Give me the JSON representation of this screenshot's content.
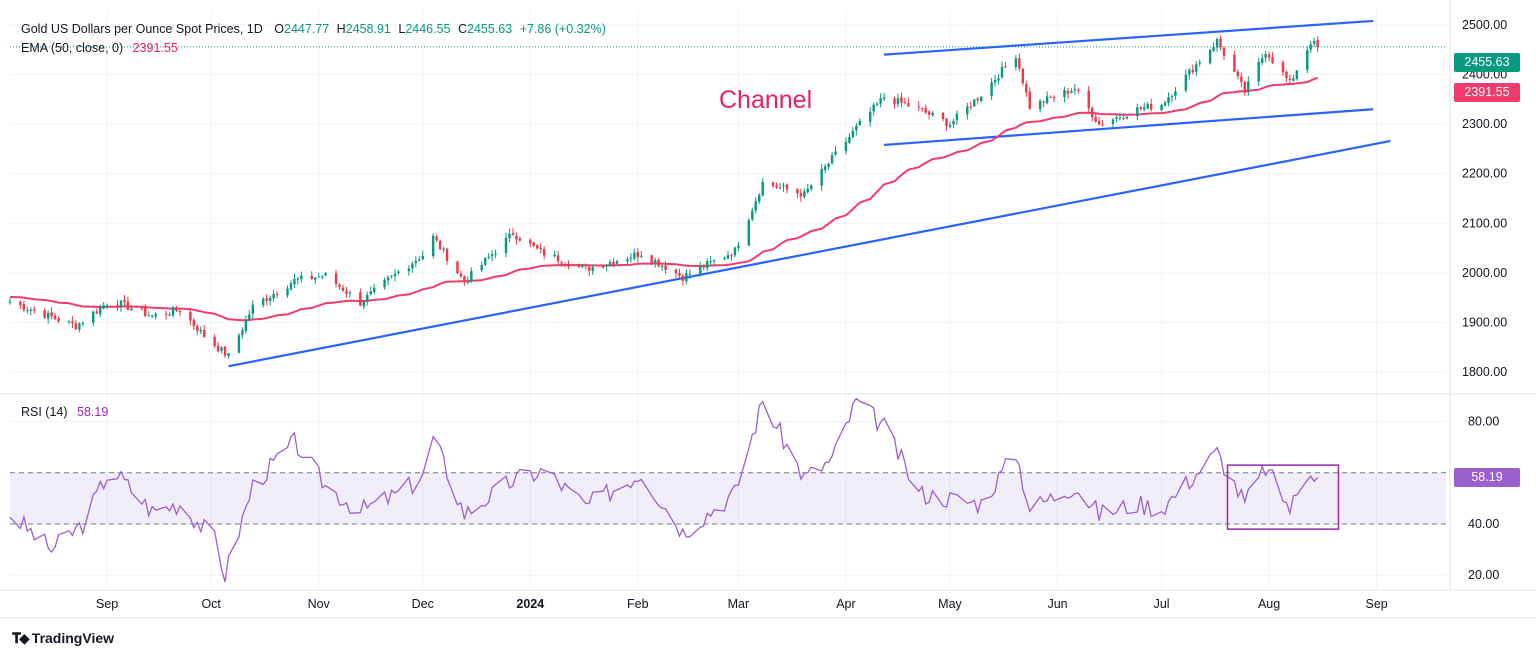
{
  "header": {
    "symbol_line": "Gold US Dollars per Ounce Spot Prices, 1D",
    "o_label": "O",
    "o_value": "2447.77",
    "h_label": "H",
    "h_value": "2458.91",
    "l_label": "L",
    "l_value": "2446.55",
    "c_label": "C",
    "c_value": "2455.63",
    "change": "+7.86 (+0.32%)",
    "ema_label": "EMA (50, close, 0)",
    "ema_value": "2391.55",
    "rsi_label": "RSI (14)",
    "rsi_value": "58.19"
  },
  "annotation": "Channel",
  "badges": {
    "price": "2455.63",
    "ema": "2391.55",
    "rsi": "58.19"
  },
  "brand": "TradingView",
  "colors": {
    "up": "#089981",
    "down": "#f23645",
    "ema": "#f23b6d",
    "rsi": "#9c5fcc",
    "trendline": "#2962ff",
    "box": "#9c27b0"
  },
  "chart_data": [
    {
      "type": "candlestick",
      "title": "Gold US Dollars per Ounce Spot Prices, 1D",
      "y_axis_ticks": [
        "2500.00",
        "2400.00",
        "2300.00",
        "2200.00",
        "2100.00",
        "2000.00",
        "1900.00",
        "1800.00"
      ],
      "ylim": [
        1760,
        2530
      ],
      "x_axis_ticks": [
        "Sep",
        "Oct",
        "Nov",
        "Dec",
        "2024",
        "Feb",
        "Mar",
        "Apr",
        "May",
        "Jun",
        "Jul",
        "Aug",
        "Sep"
      ],
      "x_tick_dates": [
        "2023-09-01",
        "2023-10-01",
        "2023-11-01",
        "2023-12-01",
        "2024-01-01",
        "2024-02-01",
        "2024-03-01",
        "2024-04-01",
        "2024-05-01",
        "2024-06-01",
        "2024-07-01",
        "2024-08-01",
        "2024-09-01"
      ],
      "xlim": [
        "2023-08-04",
        "2024-09-21"
      ],
      "close_anchor_dates": [
        "2023-08-04",
        "2023-08-23",
        "2023-09-02",
        "2023-09-14",
        "2023-09-22",
        "2023-09-30",
        "2023-10-06",
        "2023-10-13",
        "2023-10-25",
        "2023-11-03",
        "2023-11-13",
        "2023-11-24",
        "2023-12-01",
        "2023-12-04",
        "2023-12-13",
        "2023-12-27",
        "2024-01-04",
        "2024-01-17",
        "2024-02-02",
        "2024-02-14",
        "2024-02-29",
        "2024-03-08",
        "2024-03-20",
        "2024-03-28",
        "2024-04-04",
        "2024-04-12",
        "2024-04-22",
        "2024-05-01",
        "2024-05-10",
        "2024-05-20",
        "2024-05-24",
        "2024-06-06",
        "2024-06-13",
        "2024-06-24",
        "2024-07-01",
        "2024-07-17",
        "2024-07-25",
        "2024-07-31",
        "2024-08-07",
        "2024-08-13",
        "2024-08-15"
      ],
      "close_anchor_values": [
        1942,
        1893,
        1945,
        1913,
        1926,
        1866,
        1832,
        1932,
        1985,
        1995,
        1940,
        2002,
        2036,
        2072,
        1982,
        2080,
        2042,
        2008,
        2040,
        1992,
        2045,
        2182,
        2158,
        2230,
        2292,
        2355,
        2330,
        2300,
        2360,
        2440,
        2335,
        2372,
        2300,
        2330,
        2340,
        2468,
        2365,
        2448,
        2382,
        2466,
        2455.63
      ],
      "last_close": 2455.63,
      "ema_50_last": 2391.55,
      "trendlines": [
        {
          "name": "channel-top",
          "from": [
            "2024-04-12",
            2440
          ],
          "to": [
            "2024-08-31",
            2508
          ]
        },
        {
          "name": "channel-bottom",
          "from": [
            "2024-04-12",
            2258
          ],
          "to": [
            "2024-08-31",
            2330
          ]
        },
        {
          "name": "support",
          "from": [
            "2023-10-06",
            1812
          ],
          "to": [
            "2024-09-05",
            2266
          ]
        }
      ]
    },
    {
      "type": "line",
      "title": "RSI (14)",
      "y_axis_ticks": [
        "80.00",
        "60.00",
        "40.00",
        "20.00"
      ],
      "ylim": [
        15,
        90
      ],
      "band": [
        40,
        60
      ],
      "last_value": 58.19,
      "anchor_dates": [
        "2023-08-04",
        "2023-08-16",
        "2023-08-25",
        "2023-09-02",
        "2023-09-14",
        "2023-09-22",
        "2023-10-02",
        "2023-10-05",
        "2023-10-13",
        "2023-10-25",
        "2023-11-03",
        "2023-11-13",
        "2023-11-24",
        "2023-12-01",
        "2023-12-04",
        "2023-12-13",
        "2023-12-27",
        "2024-01-05",
        "2024-01-17",
        "2024-02-02",
        "2024-02-14",
        "2024-02-29",
        "2024-03-08",
        "2024-03-20",
        "2024-03-28",
        "2024-04-04",
        "2024-04-12",
        "2024-04-22",
        "2024-05-01",
        "2024-05-10",
        "2024-05-20",
        "2024-05-24",
        "2024-06-06",
        "2024-06-13",
        "2024-06-24",
        "2024-07-01",
        "2024-07-17",
        "2024-07-25",
        "2024-07-31",
        "2024-08-07",
        "2024-08-13",
        "2024-08-15"
      ],
      "anchor_values": [
        44,
        30,
        40,
        62,
        45,
        48,
        34,
        20,
        55,
        72,
        55,
        45,
        52,
        58,
        74,
        44,
        57,
        61,
        47,
        60,
        37,
        52,
        88,
        58,
        65,
        88,
        78,
        52,
        50,
        48,
        68,
        46,
        55,
        44,
        48,
        46,
        68,
        48,
        62,
        46,
        62,
        58.19
      ],
      "highlight_box": {
        "from": "2024-07-20",
        "to": "2024-08-21",
        "y_range": [
          38,
          63
        ]
      }
    }
  ]
}
